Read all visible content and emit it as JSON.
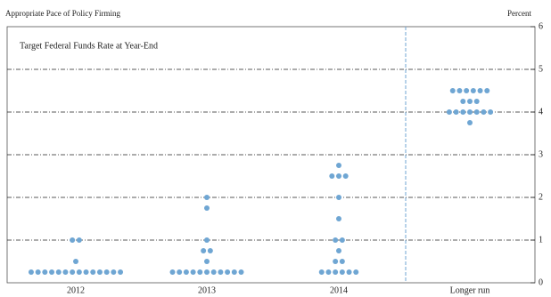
{
  "chart_data": {
    "type": "dot",
    "title": "Appropriate Pace of Policy Firming",
    "subtitle": "Target Federal Funds Rate at Year-End",
    "y_label": "Percent",
    "categories": [
      "2012",
      "2013",
      "2014",
      "Longer run"
    ],
    "dots": [
      [
        0.25,
        0.25,
        0.25,
        0.25,
        0.25,
        0.25,
        0.25,
        0.25,
        0.25,
        0.25,
        0.25,
        0.25,
        0.25,
        0.25,
        0.5,
        1,
        1
      ],
      [
        0.25,
        0.25,
        0.25,
        0.25,
        0.25,
        0.25,
        0.25,
        0.25,
        0.25,
        0.25,
        0.25,
        0.5,
        0.75,
        0.75,
        1,
        1.75,
        2
      ],
      [
        0.25,
        0.25,
        0.25,
        0.25,
        0.25,
        0.25,
        0.5,
        0.5,
        0.75,
        1,
        1,
        1.5,
        2,
        2.5,
        2.5,
        2.5,
        2.75
      ],
      [
        3.75,
        4,
        4,
        4,
        4,
        4,
        4,
        4,
        4.25,
        4.25,
        4.25,
        4.5,
        4.5,
        4.5,
        4.5,
        4.5,
        4.5
      ]
    ],
    "color": "#6fa6d3",
    "ylim": [
      0,
      6
    ],
    "yticks": [
      0,
      1,
      2,
      3,
      4,
      5,
      6
    ],
    "grid": true
  }
}
